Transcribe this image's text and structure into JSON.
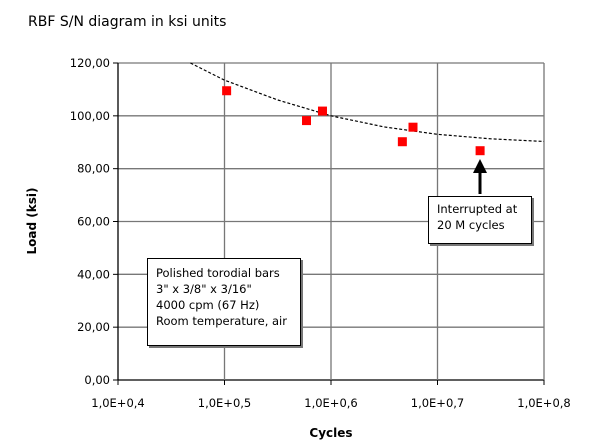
{
  "chart_data": {
    "type": "scatter",
    "title": "RBF S/N diagram in ksi units",
    "xlabel": "Cycles",
    "ylabel": "Load (ksi)",
    "xlim": [
      0.4,
      0.8
    ],
    "ylim": [
      0,
      120
    ],
    "x_ticks": [
      "1,0E+0,4",
      "1,0E+0,5",
      "1,0E+0,6",
      "1,0E+0,7",
      "1,0E+0,8"
    ],
    "y_ticks": [
      "0,00",
      "20,00",
      "40,00",
      "60,00",
      "80,00",
      "100,00",
      "120,00"
    ],
    "grid": true,
    "marker_color": "#ff0000",
    "points": [
      {
        "x": 0.502,
        "y": 109.5
      },
      {
        "x": 0.577,
        "y": 98.2
      },
      {
        "x": 0.592,
        "y": 101.8
      },
      {
        "x": 0.667,
        "y": 90.2
      },
      {
        "x": 0.677,
        "y": 95.7
      },
      {
        "x": 0.74,
        "y": 86.8
      }
    ],
    "trend_line": [
      [
        0.468,
        120
      ],
      [
        0.5,
        113.5
      ],
      [
        0.55,
        106
      ],
      [
        0.6,
        100
      ],
      [
        0.65,
        95.8
      ],
      [
        0.7,
        93
      ],
      [
        0.75,
        91.3
      ],
      [
        0.8,
        90.3
      ]
    ],
    "annotations": {
      "interrupted": [
        "Interrupted at",
        "20 M cycles"
      ],
      "conditions": [
        "Polished torodial bars",
        "3\" x  3/8\" x 3/16\"",
        "4000 cpm (67 Hz)",
        "Room temperature, air"
      ]
    }
  }
}
